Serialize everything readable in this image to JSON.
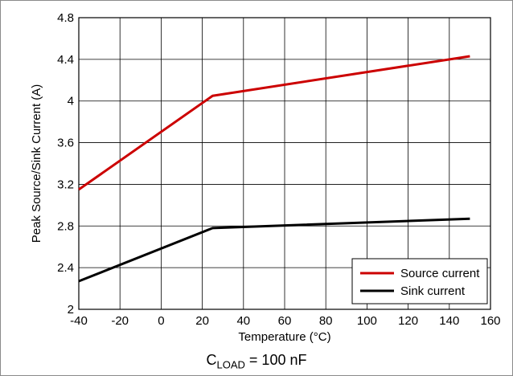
{
  "chart_data": {
    "type": "line",
    "xlabel": "Temperature (°C)",
    "ylabel": "Peak Source/Sink Current (A)",
    "xlim": [
      -40,
      160
    ],
    "ylim": [
      2,
      4.8
    ],
    "xticks": [
      "-40",
      "-20",
      "0",
      "20",
      "40",
      "60",
      "80",
      "100",
      "120",
      "140",
      "160"
    ],
    "yticks": [
      "2",
      "2.4",
      "2.8",
      "3.2",
      "3.6",
      "4",
      "4.4",
      "4.8"
    ],
    "grid": true,
    "legend_position": "bottom-right",
    "series": [
      {
        "name": "Source current",
        "color": "#cc0000",
        "x": [
          -40,
          25,
          150
        ],
        "y": [
          3.15,
          4.05,
          4.43
        ]
      },
      {
        "name": "Sink current",
        "color": "#000000",
        "x": [
          -40,
          25,
          150
        ],
        "y": [
          2.27,
          2.78,
          2.87
        ]
      }
    ]
  },
  "caption": {
    "main": "C",
    "subscript": "LOAD",
    "rest": " = 100 nF"
  }
}
